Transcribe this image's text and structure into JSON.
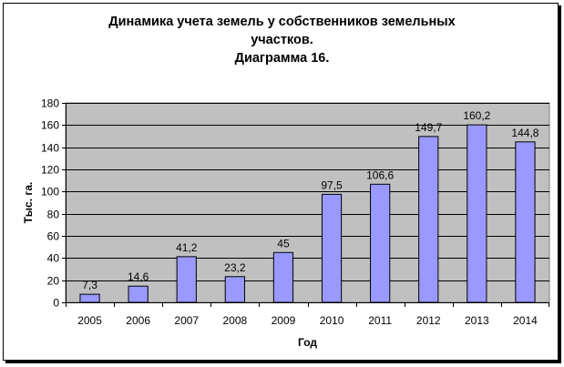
{
  "chart_data": {
    "type": "bar",
    "title_lines": [
      "Динамика учета земель у собственников земельных",
      "участков.",
      "Диаграмма 16."
    ],
    "xlabel": "Год",
    "ylabel": "Тыс. га.",
    "categories": [
      "2005",
      "2006",
      "2007",
      "2008",
      "2009",
      "2010",
      "2011",
      "2012",
      "2013",
      "2014"
    ],
    "values": [
      7.3,
      14.6,
      41.2,
      23.2,
      45,
      97.5,
      106.6,
      149.7,
      160.2,
      144.8
    ],
    "data_labels": [
      "7,3",
      "14,6",
      "41,2",
      "23,2",
      "45",
      "97,5",
      "106,6",
      "149,7",
      "160,2",
      "144,8"
    ],
    "ylim": [
      0,
      180
    ],
    "yticks": [
      0,
      20,
      40,
      60,
      80,
      100,
      120,
      140,
      160,
      180
    ],
    "grid": true,
    "legend": "none",
    "colors": {
      "bar_fill": "#9999ff",
      "bar_stroke": "#000000",
      "plot_background": "#c0c0c0",
      "gridline": "#000000"
    }
  }
}
